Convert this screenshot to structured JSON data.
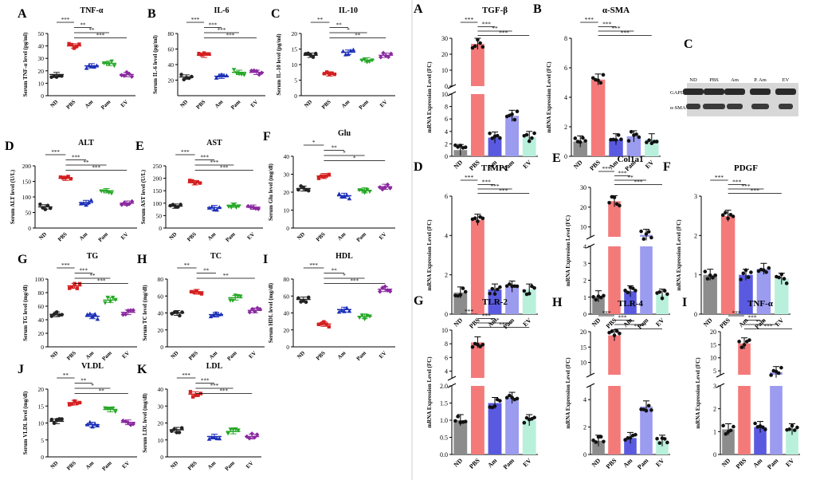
{
  "colors": {
    "ND": "#222222",
    "PBS": "#d42020",
    "Am": "#1c2fb8",
    "Pam": "#27a827",
    "EV": "#8a2aa0",
    "bar_ND": "#8c8c8c",
    "bar_PBS": "#f47a7a",
    "bar_Am": "#5a5ae0",
    "bar_Pam": "#9b9bf0",
    "bar_EV": "#b8f0dc"
  },
  "left_groups": [
    "ND",
    "PBS",
    "Am",
    "Pam",
    "EV"
  ],
  "right_groups": [
    "ND",
    "PBS",
    "Am",
    "Pam",
    "EV"
  ],
  "blot": {
    "letter": "C",
    "lanes": [
      "ND",
      "PBS",
      "Am",
      "P. Am",
      "EV"
    ],
    "rows": [
      "GAPDH",
      "α-SMA"
    ]
  },
  "chart_data": [
    {
      "type": "scatter",
      "panel": "left",
      "letter": "A",
      "title": "TNF-α",
      "ylabel": "Serum TNF-α level (pg/ml)",
      "ylim": [
        0,
        50
      ],
      "ticks": [
        0,
        10,
        20,
        30,
        40,
        50
      ],
      "means": [
        17,
        40,
        24,
        26,
        17
      ],
      "sig": [
        [
          "ND",
          "PBS",
          "***"
        ],
        [
          "PBS",
          "Am",
          "**"
        ],
        [
          "PBS",
          "Pam",
          "**"
        ],
        [
          "PBS",
          "EV",
          "***"
        ]
      ]
    },
    {
      "type": "scatter",
      "panel": "left",
      "letter": "B",
      "title": "IL-6",
      "ylabel": "Serum IL-6 level (pg/ml)",
      "ylim": [
        0,
        80
      ],
      "ticks": [
        20,
        40,
        60,
        80
      ],
      "tick_labels": [
        "20",
        "40",
        "60",
        "80"
      ],
      "ylim_min_label": "",
      "means": [
        24,
        52,
        25,
        30,
        30
      ],
      "sig": [
        [
          "ND",
          "PBS",
          "***"
        ],
        [
          "PBS",
          "Am",
          "***"
        ],
        [
          "PBS",
          "Pam",
          "***"
        ],
        [
          "PBS",
          "EV",
          "***"
        ]
      ]
    },
    {
      "type": "scatter",
      "panel": "left",
      "letter": "C",
      "title": "IL-10",
      "ylabel": "Serum IL-10 level (pg/ml)",
      "ylim": [
        0,
        20
      ],
      "ticks": [
        0,
        5,
        10,
        15,
        20
      ],
      "means": [
        13,
        7,
        14,
        11.5,
        13
      ],
      "sig": [
        [
          "ND",
          "PBS",
          "**"
        ],
        [
          "PBS",
          "Am",
          "**"
        ],
        [
          "PBS",
          "Pam",
          "*"
        ],
        [
          "PBS",
          "EV",
          "**"
        ]
      ]
    },
    {
      "type": "scatter",
      "panel": "left",
      "letter": "D",
      "title": "ALT",
      "ylabel": "Serum ALT level (U/L)",
      "ylim": [
        0,
        200
      ],
      "ticks": [
        0,
        50,
        100,
        150,
        200
      ],
      "means": [
        68,
        160,
        82,
        120,
        80
      ],
      "sig": [
        [
          "ND",
          "PBS",
          "***"
        ],
        [
          "PBS",
          "Am",
          "***"
        ],
        [
          "PBS",
          "Pam",
          "**"
        ],
        [
          "PBS",
          "EV",
          "***"
        ]
      ]
    },
    {
      "type": "scatter",
      "panel": "left",
      "letter": "E",
      "title": "AST",
      "ylabel": "Serum AST level (U/L)",
      "ylim": [
        0,
        250
      ],
      "ticks": [
        0,
        50,
        100,
        150,
        200,
        250
      ],
      "means": [
        88,
        182,
        82,
        92,
        84
      ],
      "sig": [
        [
          "ND",
          "PBS",
          "***"
        ],
        [
          "PBS",
          "Am",
          "***"
        ],
        [
          "PBS",
          "Pam",
          "***"
        ],
        [
          "PBS",
          "EV",
          "***"
        ]
      ]
    },
    {
      "type": "scatter",
      "panel": "left",
      "letter": "F",
      "title": "Glu",
      "ylabel": "Serum Glu level (mg/dl)",
      "ylim": [
        0,
        40
      ],
      "ticks": [
        0,
        10,
        20,
        30,
        40
      ],
      "means": [
        22,
        29,
        18,
        21,
        23
      ],
      "sig": [
        [
          "ND",
          "PBS",
          "*"
        ],
        [
          "PBS",
          "Am",
          "**"
        ],
        [
          "PBS",
          "Pam",
          "*"
        ],
        [
          "PBS",
          "EV",
          "*"
        ]
      ]
    },
    {
      "type": "scatter",
      "panel": "left",
      "letter": "G",
      "title": "TG",
      "ylabel": "Serum TG level (mg/dl)",
      "ylim": [
        0,
        100
      ],
      "ticks": [
        0,
        20,
        40,
        60,
        80,
        100
      ],
      "means": [
        48,
        90,
        45,
        69,
        51
      ],
      "sig": [
        [
          "ND",
          "PBS",
          "***"
        ],
        [
          "PBS",
          "Am",
          "***"
        ],
        [
          "PBS",
          "Pam",
          "**"
        ],
        [
          "PBS",
          "EV",
          "***"
        ]
      ]
    },
    {
      "type": "scatter",
      "panel": "left",
      "letter": "H",
      "title": "TC",
      "ylabel": "Serum TC level (mg/dl)",
      "ylim": [
        0,
        80
      ],
      "ticks": [
        0,
        20,
        40,
        60,
        80
      ],
      "means": [
        40,
        65,
        38,
        58,
        43
      ],
      "sig": [
        [
          "ND",
          "PBS",
          "**"
        ],
        [
          "PBS",
          "Am",
          "**"
        ],
        [
          "PBS",
          "EV",
          "**"
        ]
      ]
    },
    {
      "type": "scatter",
      "panel": "left",
      "letter": "I",
      "title": "HDL",
      "ylabel": "Serum HDL level (mg/dl)",
      "ylim": [
        0,
        80
      ],
      "ticks": [
        0,
        20,
        40,
        60,
        80
      ],
      "means": [
        56,
        27,
        44,
        36,
        68
      ],
      "sig": [
        [
          "ND",
          "PBS",
          "***"
        ],
        [
          "PBS",
          "Am",
          "**"
        ],
        [
          "PBS",
          "Pam",
          "*"
        ],
        [
          "PBS",
          "EV",
          "***"
        ]
      ]
    },
    {
      "type": "scatter",
      "panel": "left",
      "letter": "J",
      "title": "VLDL",
      "ylabel": "Serum VLDL level (mg/dl)",
      "ylim": [
        0,
        20
      ],
      "ticks": [
        0,
        5,
        10,
        15,
        20
      ],
      "means": [
        10.5,
        16,
        9.5,
        14,
        10.2
      ],
      "sig": [
        [
          "ND",
          "PBS",
          "**"
        ],
        [
          "PBS",
          "Am",
          "**"
        ],
        [
          "PBS",
          "Pam",
          "*"
        ],
        [
          "PBS",
          "EV",
          "**"
        ]
      ]
    },
    {
      "type": "scatter",
      "panel": "left",
      "letter": "K",
      "title": "LDL",
      "ylabel": "Serum LDL level (mg/dl)",
      "ylim": [
        0,
        40
      ],
      "ticks": [
        0,
        10,
        20,
        30,
        40
      ],
      "means": [
        16,
        37,
        12,
        15,
        12
      ],
      "sig": [
        [
          "ND",
          "PBS",
          "***"
        ],
        [
          "PBS",
          "Am",
          "***"
        ],
        [
          "PBS",
          "Pam",
          "***"
        ],
        [
          "PBS",
          "EV",
          "***"
        ]
      ]
    },
    {
      "type": "bar",
      "panel": "right",
      "letter": "A",
      "title": "TGF-β",
      "ylabel": "mRNA Expression Level (FC)",
      "values": [
        1.0,
        26.5,
        3.0,
        6.5,
        3.1
      ],
      "upper": {
        "ylim": [
          0,
          30
        ],
        "ticks": [
          0,
          10,
          20,
          30
        ]
      },
      "lower": {
        "ylim": [
          0,
          10
        ],
        "ticks": [
          0,
          2,
          4,
          6,
          8,
          10
        ]
      },
      "break": true,
      "sig": [
        [
          "ND",
          "PBS",
          "***"
        ],
        [
          "PBS",
          "Am",
          "***"
        ],
        [
          "PBS",
          "Pam",
          "**"
        ],
        [
          "PBS",
          "EV",
          "***"
        ]
      ]
    },
    {
      "type": "bar",
      "panel": "right",
      "letter": "B",
      "title": "α-SMA",
      "ylabel": "mRNA Expression Level (FC)",
      "values": [
        1.0,
        5.2,
        1.15,
        1.35,
        1.15
      ],
      "lower": {
        "ylim": [
          0,
          8
        ],
        "ticks": [
          0,
          2,
          4,
          6,
          8
        ]
      },
      "break": false,
      "sig": [
        [
          "ND",
          "PBS",
          "***"
        ],
        [
          "PBS",
          "Am",
          "***"
        ],
        [
          "PBS",
          "Pam",
          "***"
        ],
        [
          "PBS",
          "EV",
          "***"
        ]
      ]
    },
    {
      "type": "bar",
      "panel": "right",
      "letter": "D",
      "title": "TIMP1",
      "ylabel": "mRNA Expression Level (FC)",
      "values": [
        1.1,
        4.8,
        1.25,
        1.4,
        1.25
      ],
      "lower": {
        "ylim": [
          0,
          6
        ],
        "ticks": [
          0,
          2,
          4,
          6
        ]
      },
      "break": false,
      "sig": [
        [
          "ND",
          "PBS",
          "***"
        ],
        [
          "PBS",
          "Am",
          "***"
        ],
        [
          "PBS",
          "Pam",
          "***"
        ],
        [
          "PBS",
          "EV",
          "***"
        ]
      ]
    },
    {
      "type": "bar",
      "panel": "right",
      "letter": "E",
      "title": "Col1a1",
      "ylabel": "mRNA Expression Level (FC)",
      "values": [
        1.05,
        23,
        1.35,
        6,
        1.15
      ],
      "upper": {
        "ylim": [
          5,
          30
        ],
        "ticks": [
          10,
          20,
          30
        ]
      },
      "lower": {
        "ylim": [
          0,
          4
        ],
        "ticks": [
          0,
          1,
          2,
          3,
          4
        ]
      },
      "break": true,
      "sig": [
        [
          "ND",
          "PBS",
          "***"
        ],
        [
          "PBS",
          "Am",
          "***"
        ],
        [
          "PBS",
          "Pam",
          "**"
        ],
        [
          "PBS",
          "EV",
          "***"
        ]
      ]
    },
    {
      "type": "bar",
      "panel": "right",
      "letter": "F",
      "title": "PDGF",
      "ylabel": "mRNA Expression Level (FC)",
      "values": [
        1.0,
        2.5,
        1.0,
        1.15,
        0.9
      ],
      "lower": {
        "ylim": [
          0,
          3
        ],
        "ticks": [
          0,
          1,
          2,
          3
        ]
      },
      "break": false,
      "sig": [
        [
          "ND",
          "PBS",
          "***"
        ],
        [
          "PBS",
          "Am",
          "***"
        ],
        [
          "PBS",
          "Pam",
          "***"
        ],
        [
          "PBS",
          "EV",
          "***"
        ]
      ]
    },
    {
      "type": "bar",
      "panel": "right",
      "letter": "G",
      "title": "TLR-2",
      "ylabel": "mRNA Expression Level (FC)",
      "values": [
        1.0,
        8.2,
        1.5,
        1.65,
        1.0
      ],
      "upper": {
        "ylim": [
          3,
          10
        ],
        "ticks": [
          4,
          6,
          8,
          10
        ]
      },
      "lower": {
        "ylim": [
          0,
          2
        ],
        "ticks": [
          0,
          0.5,
          1.0,
          1.5,
          2.0
        ],
        "tick_labels": [
          "0.0",
          "0.5",
          "1.0",
          "1.5",
          "2.0"
        ]
      },
      "break": true,
      "sig": [
        [
          "ND",
          "PBS",
          "***"
        ],
        [
          "PBS",
          "Am",
          "***"
        ],
        [
          "PBS",
          "Pam",
          "***"
        ],
        [
          "PBS",
          "EV",
          "***"
        ]
      ]
    },
    {
      "type": "bar",
      "panel": "right",
      "letter": "H",
      "title": "TLR-4",
      "ylabel": "mRNA Expression Level (FC)",
      "values": [
        1.0,
        18.8,
        1.2,
        3.5,
        1.0
      ],
      "upper": {
        "ylim": [
          6,
          20
        ],
        "ticks": [
          10,
          15,
          20
        ]
      },
      "lower": {
        "ylim": [
          0,
          5
        ],
        "ticks": [
          0,
          2,
          4
        ]
      },
      "break": true,
      "sig": [
        [
          "ND",
          "PBS",
          "***"
        ],
        [
          "PBS",
          "Am",
          "***"
        ],
        [
          "PBS",
          "Pam",
          "***"
        ],
        [
          "PBS",
          "EV",
          "***"
        ]
      ]
    },
    {
      "type": "bar",
      "panel": "right",
      "letter": "I",
      "title": "TNF-α",
      "ylabel": "mRNA Expression Level (FC)",
      "values": [
        1.1,
        15.5,
        1.2,
        4.5,
        1.1
      ],
      "upper": {
        "ylim": [
          3.5,
          20
        ],
        "ticks": [
          5,
          10,
          15,
          20
        ]
      },
      "lower": {
        "ylim": [
          0,
          3
        ],
        "ticks": [
          0,
          1,
          2,
          3
        ]
      },
      "break": true,
      "sig": [
        [
          "ND",
          "PBS",
          "***"
        ],
        [
          "PBS",
          "Am",
          "***"
        ],
        [
          "PBS",
          "Pam",
          "***"
        ],
        [
          "PBS",
          "EV",
          "***"
        ]
      ]
    }
  ]
}
